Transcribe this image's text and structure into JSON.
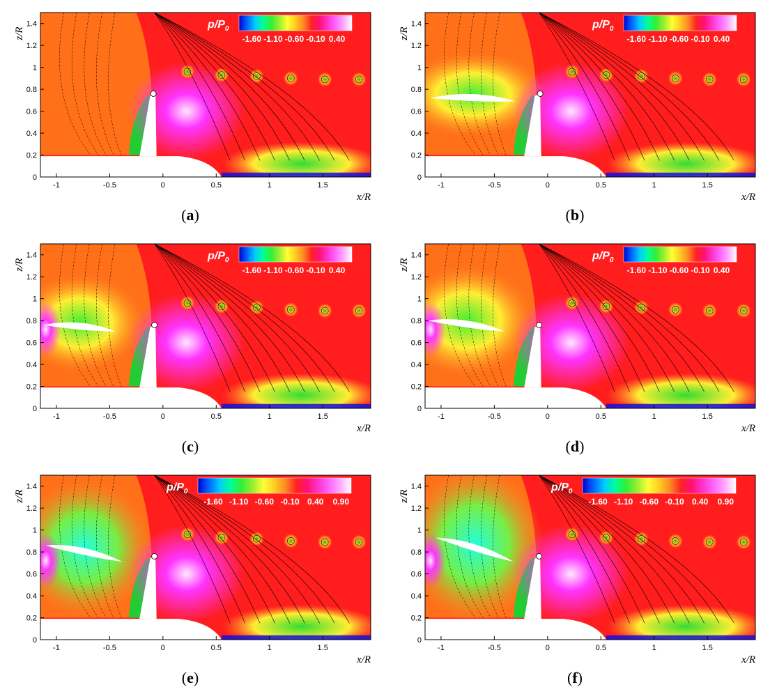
{
  "chart_data": [
    {
      "panel": "a",
      "type": "heatmap",
      "title": "p/P0",
      "colorbar_title_main": "p/P",
      "colorbar_title_sub": "0",
      "xlabel": "x/R",
      "ylabel": "z/R",
      "xlim": [
        -1.15,
        1.95
      ],
      "ylim": [
        0,
        1.5
      ],
      "x_ticks": [
        "-1",
        "-0.5",
        "0",
        "0.5",
        "1",
        "1.5"
      ],
      "y_ticks": [
        "0",
        "0.2",
        "0.4",
        "0.6",
        "0.8",
        "1",
        "1.2",
        "1.4"
      ],
      "colorbar_ticks": [
        "-1.60",
        "-1.10",
        "-0.60",
        "-0.10",
        "0.40"
      ],
      "colorbar_range": [
        -1.9,
        0.75
      ],
      "front_rotor": null,
      "rear_blade_tip": [
        -0.09,
        0.76
      ],
      "tip_vortices": [
        [
          0.23,
          0.96
        ],
        [
          0.55,
          0.93
        ],
        [
          0.88,
          0.92
        ],
        [
          1.2,
          0.9
        ],
        [
          1.52,
          0.89
        ],
        [
          1.84,
          0.89
        ]
      ],
      "caption": "a"
    },
    {
      "panel": "b",
      "type": "heatmap",
      "title": "p/P0",
      "colorbar_title_main": "p/P",
      "colorbar_title_sub": "0",
      "xlabel": "x/R",
      "ylabel": "z/R",
      "xlim": [
        -1.15,
        1.95
      ],
      "ylim": [
        0,
        1.5
      ],
      "x_ticks": [
        "-1",
        "-0.5",
        "0",
        "0.5",
        "1",
        "1.5"
      ],
      "y_ticks": [
        "0",
        "0.2",
        "0.4",
        "0.6",
        "0.8",
        "1",
        "1.2",
        "1.4"
      ],
      "colorbar_ticks": [
        "-1.60",
        "-1.10",
        "-0.60",
        "-0.10",
        "0.40"
      ],
      "colorbar_range": [
        -1.9,
        0.75
      ],
      "front_rotor": {
        "le": [
          -1.1,
          0.72
        ],
        "te": [
          -0.3,
          0.69
        ],
        "pitch_deg": 2
      },
      "rear_blade_tip": [
        -0.07,
        0.76
      ],
      "tip_vortices": [
        [
          0.23,
          0.96
        ],
        [
          0.55,
          0.93
        ],
        [
          0.88,
          0.92
        ],
        [
          1.2,
          0.9
        ],
        [
          1.52,
          0.89
        ],
        [
          1.84,
          0.89
        ]
      ],
      "caption": "b"
    },
    {
      "panel": "c",
      "type": "heatmap",
      "title": "p/P0",
      "colorbar_title_main": "p/P",
      "colorbar_title_sub": "0",
      "xlabel": "x/R",
      "ylabel": "z/R",
      "xlim": [
        -1.15,
        1.95
      ],
      "ylim": [
        0,
        1.5
      ],
      "x_ticks": [
        "-1",
        "-0.5",
        "0",
        "0.5",
        "1",
        "1.5"
      ],
      "y_ticks": [
        "0",
        "0.2",
        "0.4",
        "0.6",
        "0.8",
        "1",
        "1.2",
        "1.4"
      ],
      "colorbar_ticks": [
        "-1.60",
        "-1.10",
        "-0.60",
        "-0.10",
        "0.40"
      ],
      "colorbar_range": [
        -1.9,
        0.75
      ],
      "front_rotor": {
        "le": [
          -1.12,
          0.76
        ],
        "te": [
          -0.44,
          0.7
        ],
        "pitch_deg": 5
      },
      "rear_blade_tip": [
        -0.08,
        0.76
      ],
      "tip_vortices": [
        [
          0.23,
          0.96
        ],
        [
          0.55,
          0.93
        ],
        [
          0.88,
          0.92
        ],
        [
          1.2,
          0.9
        ],
        [
          1.52,
          0.89
        ],
        [
          1.84,
          0.89
        ]
      ],
      "caption": "c"
    },
    {
      "panel": "d",
      "type": "heatmap",
      "title": "p/P0",
      "colorbar_title_main": "p/P",
      "colorbar_title_sub": "0",
      "xlabel": "x/R",
      "ylabel": "z/R",
      "xlim": [
        -1.15,
        1.95
      ],
      "ylim": [
        0,
        1.5
      ],
      "x_ticks": [
        "-1",
        "-0.5",
        "0",
        "0.5",
        "1",
        "1.5"
      ],
      "y_ticks": [
        "0",
        "0.2",
        "0.4",
        "0.6",
        "0.8",
        "1",
        "1.2",
        "1.4"
      ],
      "colorbar_ticks": [
        "-1.60",
        "-1.10",
        "-0.60",
        "-0.10",
        "0.40"
      ],
      "colorbar_range": [
        -1.9,
        0.75
      ],
      "front_rotor": {
        "le": [
          -1.12,
          0.8
        ],
        "te": [
          -0.4,
          0.7
        ],
        "pitch_deg": 8
      },
      "rear_blade_tip": [
        -0.08,
        0.76
      ],
      "tip_vortices": [
        [
          0.23,
          0.96
        ],
        [
          0.55,
          0.93
        ],
        [
          0.88,
          0.92
        ],
        [
          1.2,
          0.9
        ],
        [
          1.52,
          0.89
        ],
        [
          1.84,
          0.89
        ]
      ],
      "caption": "d"
    },
    {
      "panel": "e",
      "type": "heatmap",
      "title": "p/P0",
      "colorbar_title_main": "p/P",
      "colorbar_title_sub": "0",
      "xlabel": "x/R",
      "ylabel": "z/R",
      "xlim": [
        -1.15,
        1.95
      ],
      "ylim": [
        0,
        1.5
      ],
      "x_ticks": [
        "-1",
        "-0.5",
        "0",
        "0.5",
        "1",
        "1.5"
      ],
      "y_ticks": [
        "0",
        "0.2",
        "0.4",
        "0.6",
        "0.8",
        "1",
        "1.2",
        "1.4"
      ],
      "colorbar_ticks": [
        "-1.60",
        "-1.10",
        "-0.60",
        "-0.10",
        "0.40",
        "0.90"
      ],
      "colorbar_range": [
        -1.9,
        1.1
      ],
      "front_rotor": {
        "le": [
          -1.1,
          0.86
        ],
        "te": [
          -0.38,
          0.71
        ],
        "pitch_deg": 14
      },
      "rear_blade_tip": [
        -0.08,
        0.76
      ],
      "tip_vortices": [
        [
          0.23,
          0.96
        ],
        [
          0.55,
          0.93
        ],
        [
          0.88,
          0.92
        ],
        [
          1.2,
          0.9
        ],
        [
          1.52,
          0.89
        ],
        [
          1.84,
          0.89
        ]
      ],
      "caption": "e"
    },
    {
      "panel": "f",
      "type": "heatmap",
      "title": "p/P0",
      "colorbar_title_main": "p/P",
      "colorbar_title_sub": "0",
      "xlabel": "x/R",
      "ylabel": "z/R",
      "xlim": [
        -1.15,
        1.95
      ],
      "ylim": [
        0,
        1.5
      ],
      "x_ticks": [
        "-1",
        "-0.5",
        "0",
        "0.5",
        "1",
        "1.5"
      ],
      "y_ticks": [
        "0",
        "0.2",
        "0.4",
        "0.6",
        "0.8",
        "1",
        "1.2",
        "1.4"
      ],
      "colorbar_ticks": [
        "-1.60",
        "-1.10",
        "-0.60",
        "-0.10",
        "0.40",
        "0.90"
      ],
      "colorbar_range": [
        -1.9,
        1.1
      ],
      "front_rotor": {
        "le": [
          -1.05,
          0.93
        ],
        "te": [
          -0.32,
          0.71
        ],
        "pitch_deg": 18
      },
      "rear_blade_tip": [
        -0.08,
        0.76
      ],
      "tip_vortices": [
        [
          0.23,
          0.96
        ],
        [
          0.55,
          0.93
        ],
        [
          0.88,
          0.92
        ],
        [
          1.2,
          0.9
        ],
        [
          1.52,
          0.89
        ],
        [
          1.84,
          0.89
        ]
      ],
      "caption": "f"
    }
  ],
  "colors": {
    "background_field": "#ff1d1d",
    "suction_side": "#ff7a1a",
    "pressure_high": "#ff33ff",
    "wake_low": "#22cc33",
    "deep_low": "#1010dd",
    "body": "#ffffff",
    "contour_line": "#000000",
    "colormap": [
      "#0000cc",
      "#0066ff",
      "#00ccff",
      "#00ff99",
      "#33ee33",
      "#99ee33",
      "#ffff33",
      "#ffcc22",
      "#ff8822",
      "#ff2222",
      "#ff1177",
      "#ff33cc",
      "#ff66ff",
      "#ffaaff",
      "#ffffff"
    ]
  }
}
